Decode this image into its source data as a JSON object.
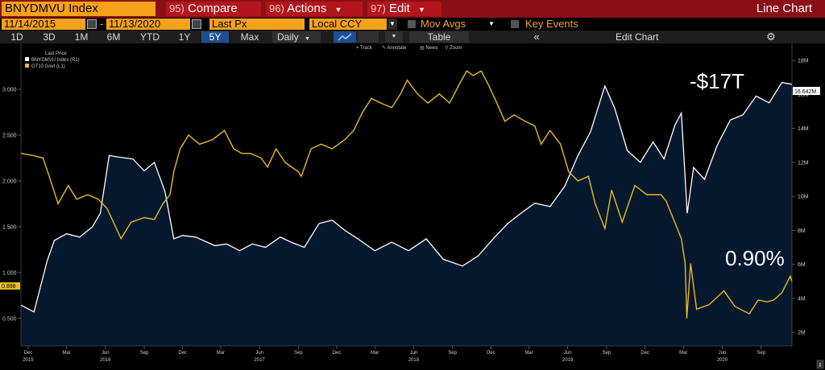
{
  "topbar": {
    "ticker": "BNYDMVU Index",
    "compare_num": "95)",
    "compare_label": "Compare",
    "actions_num": "96)",
    "actions_label": "Actions",
    "edit_num": "97)",
    "edit_label": "Edit",
    "chart_type": "Line Chart"
  },
  "controls": {
    "start_date": "11/14/2015",
    "end_date": "11/13/2020",
    "field": "Last Px",
    "currency": "Local CCY",
    "mov_avgs": "Mov Avgs",
    "key_events": "Key Events"
  },
  "toolbar": {
    "periods": [
      "1D",
      "3D",
      "1M",
      "6M",
      "YTD",
      "1Y",
      "5Y",
      "Max"
    ],
    "selected_period": "5Y",
    "frequency": "Daily",
    "table_label": "Table",
    "collapse_icon": "double-chevron-left-icon",
    "edit_chart": "Edit Chart",
    "settings_icon": "gear-icon",
    "tools": [
      "Track",
      "Annotate",
      "News",
      "Zoom"
    ]
  },
  "legend": {
    "header": "Last Price",
    "items": [
      "BNYDMVU Index  (R1)",
      "GT10 Govt  (L1)"
    ]
  },
  "annotations": {
    "negative_yield_debt": "-$17T",
    "yield": "0.90%"
  },
  "colors": {
    "brand_red": "#8a0f16",
    "orange": "#f6a11a",
    "negative_debt_line": "#ffffff",
    "negative_debt_fill": "#06182e",
    "yield_line": "#e7bd1c"
  },
  "chart_data": {
    "type": "line",
    "title": "",
    "x_range": [
      "2015-11-14",
      "2020-11-13"
    ],
    "y_left": {
      "label": "",
      "range": [
        0.2,
        3.5
      ],
      "ticks": [
        "0.500",
        "1.000",
        "1.500",
        "2.000",
        "2.500",
        "3.000"
      ],
      "current_label": "0.898"
    },
    "y_right": {
      "label": "",
      "range": [
        1.2,
        19
      ],
      "ticks": [
        "2M",
        "4M",
        "6M",
        "8M",
        "10M",
        "12M",
        "14M",
        "16M",
        "18M"
      ],
      "current_label": "16.642M"
    },
    "x_ticks": [
      "Dec",
      "Mar",
      "Jun",
      "Sep",
      "Dec",
      "Mar",
      "Jun",
      "Sep",
      "Dec",
      "Mar",
      "Jun",
      "Sep",
      "Dec",
      "Mar",
      "Jun",
      "Sep",
      "Dec",
      "Mar",
      "Jun",
      "Sep"
    ],
    "x_tick_dates": [
      "2015-12-01",
      "2016-03-01",
      "2016-06-01",
      "2016-09-01",
      "2016-12-01",
      "2017-03-01",
      "2017-06-01",
      "2017-09-01",
      "2017-12-01",
      "2018-03-01",
      "2018-06-01",
      "2018-09-01",
      "2018-12-01",
      "2019-03-01",
      "2019-06-01",
      "2019-09-01",
      "2019-12-01",
      "2020-03-01",
      "2020-06-01",
      "2020-09-01"
    ],
    "x_years": [
      {
        "label": "2015",
        "date": "2015-12-01"
      },
      {
        "label": "2016",
        "date": "2016-06-01"
      },
      {
        "label": "2017",
        "date": "2017-06-01"
      },
      {
        "label": "2018",
        "date": "2018-06-01"
      },
      {
        "label": "2019",
        "date": "2019-06-01"
      },
      {
        "label": "2020",
        "date": "2020-06-01"
      }
    ],
    "series": [
      {
        "name": "BNYDMVU Index",
        "axis": "right",
        "style": "area",
        "x": [
          "2015-11-14",
          "2015-12-15",
          "2016-01-15",
          "2016-02-01",
          "2016-03-01",
          "2016-04-01",
          "2016-05-01",
          "2016-05-20",
          "2016-06-10",
          "2016-07-05",
          "2016-08-05",
          "2016-09-01",
          "2016-09-25",
          "2016-10-20",
          "2016-11-10",
          "2016-12-01",
          "2017-01-01",
          "2017-02-15",
          "2017-03-15",
          "2017-04-15",
          "2017-05-15",
          "2017-06-15",
          "2017-07-20",
          "2017-08-15",
          "2017-09-15",
          "2017-10-20",
          "2017-11-20",
          "2017-12-20",
          "2018-01-20",
          "2018-03-01",
          "2018-04-10",
          "2018-05-20",
          "2018-07-01",
          "2018-08-10",
          "2018-09-25",
          "2018-11-01",
          "2018-12-10",
          "2019-01-10",
          "2019-02-15",
          "2019-03-15",
          "2019-04-20",
          "2019-05-25",
          "2019-06-25",
          "2019-07-25",
          "2019-08-28",
          "2019-09-20",
          "2019-10-20",
          "2019-11-20",
          "2019-12-20",
          "2020-01-15",
          "2020-02-10",
          "2020-02-25",
          "2020-03-10",
          "2020-03-25",
          "2020-04-20",
          "2020-05-20",
          "2020-06-20",
          "2020-07-20",
          "2020-08-20",
          "2020-09-20",
          "2020-10-20",
          "2020-11-13"
        ],
        "values": [
          3.6,
          3.2,
          6.2,
          7.4,
          7.8,
          7.6,
          8.2,
          9.0,
          12.4,
          12.3,
          12.2,
          11.5,
          12.0,
          10.3,
          7.5,
          7.7,
          7.6,
          7.1,
          7.2,
          6.8,
          7.2,
          7.0,
          7.6,
          7.3,
          7.0,
          8.4,
          8.6,
          8.0,
          7.5,
          6.8,
          7.3,
          6.8,
          7.5,
          6.3,
          5.9,
          6.5,
          7.6,
          8.4,
          9.1,
          9.6,
          9.4,
          10.6,
          12.4,
          13.8,
          16.5,
          15.2,
          12.7,
          12.0,
          13.2,
          12.2,
          14.2,
          14.9,
          9.0,
          11.7,
          11.0,
          13.0,
          14.5,
          14.8,
          15.9,
          15.5,
          16.7,
          16.6
        ]
      },
      {
        "name": "GT10 Govt",
        "axis": "left",
        "style": "line",
        "x": [
          "2015-11-14",
          "2015-12-10",
          "2016-01-05",
          "2016-01-20",
          "2016-02-10",
          "2016-03-05",
          "2016-03-25",
          "2016-04-20",
          "2016-05-15",
          "2016-06-05",
          "2016-06-25",
          "2016-07-08",
          "2016-08-01",
          "2016-09-01",
          "2016-09-25",
          "2016-10-15",
          "2016-11-01",
          "2016-11-10",
          "2016-11-25",
          "2016-12-15",
          "2017-01-10",
          "2017-02-10",
          "2017-03-10",
          "2017-04-01",
          "2017-04-20",
          "2017-05-10",
          "2017-06-05",
          "2017-06-20",
          "2017-07-10",
          "2017-08-01",
          "2017-09-01",
          "2017-09-08",
          "2017-10-01",
          "2017-10-25",
          "2017-11-20",
          "2017-12-20",
          "2018-01-10",
          "2018-01-31",
          "2018-02-21",
          "2018-03-15",
          "2018-04-10",
          "2018-05-01",
          "2018-05-17",
          "2018-06-10",
          "2018-07-05",
          "2018-08-01",
          "2018-08-25",
          "2018-09-20",
          "2018-10-05",
          "2018-10-20",
          "2018-11-08",
          "2018-11-25",
          "2018-12-15",
          "2019-01-03",
          "2019-01-25",
          "2019-02-20",
          "2019-03-15",
          "2019-03-30",
          "2019-04-20",
          "2019-05-15",
          "2019-06-03",
          "2019-06-25",
          "2019-07-20",
          "2019-08-05",
          "2019-08-28",
          "2019-09-13",
          "2019-10-08",
          "2019-11-07",
          "2019-12-05",
          "2020-01-08",
          "2020-01-20",
          "2020-02-05",
          "2020-02-25",
          "2020-03-05",
          "2020-03-09",
          "2020-03-18",
          "2020-04-01",
          "2020-05-01",
          "2020-06-05",
          "2020-07-01",
          "2020-08-04",
          "2020-08-25",
          "2020-09-15",
          "2020-10-01",
          "2020-10-20",
          "2020-11-09",
          "2020-11-13"
        ],
        "values": [
          2.3,
          2.28,
          2.25,
          2.05,
          1.75,
          1.95,
          1.8,
          1.85,
          1.8,
          1.7,
          1.5,
          1.37,
          1.55,
          1.6,
          1.58,
          1.75,
          1.85,
          2.1,
          2.35,
          2.5,
          2.4,
          2.45,
          2.55,
          2.35,
          2.3,
          2.3,
          2.25,
          2.15,
          2.35,
          2.2,
          2.1,
          2.05,
          2.35,
          2.4,
          2.35,
          2.45,
          2.55,
          2.75,
          2.9,
          2.85,
          2.8,
          2.95,
          3.1,
          2.95,
          2.85,
          2.95,
          2.85,
          3.08,
          3.2,
          3.15,
          3.2,
          3.05,
          2.85,
          2.65,
          2.72,
          2.65,
          2.6,
          2.4,
          2.55,
          2.4,
          2.1,
          2.0,
          2.05,
          1.75,
          1.48,
          1.9,
          1.55,
          1.95,
          1.85,
          1.85,
          1.78,
          1.6,
          1.37,
          1.1,
          0.5,
          1.1,
          0.6,
          0.65,
          0.8,
          0.63,
          0.55,
          0.7,
          0.68,
          0.7,
          0.78,
          0.96,
          0.9
        ]
      }
    ],
    "grid": false,
    "legend_position": "top-left"
  }
}
